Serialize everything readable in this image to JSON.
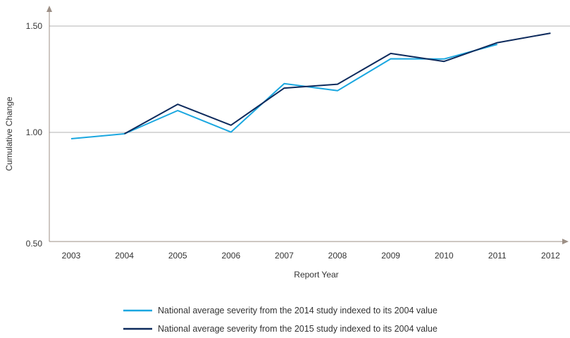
{
  "chart_data": {
    "type": "line",
    "xlabel": "Report Year",
    "ylabel": "Cumulative Change",
    "ylim": [
      0.5,
      1.5
    ],
    "yticks": [
      "0.50",
      "1.00",
      "1.50"
    ],
    "categories": [
      "2003",
      "2004",
      "2005",
      "2006",
      "2007",
      "2008",
      "2009",
      "2010",
      "2011",
      "2012"
    ],
    "grid": "horizontal",
    "legend_position": "bottom",
    "series": [
      {
        "name": "National average severity from the 2014 study indexed to its 2004 value",
        "color": "#1aa7e0",
        "values": [
          0.977,
          1.0,
          1.108,
          1.008,
          1.233,
          1.2,
          1.348,
          1.347,
          1.415,
          null
        ]
      },
      {
        "name": "National average severity from the 2015 study indexed to its 2004 value",
        "color": "#0d2a5c",
        "values": [
          null,
          1.0,
          1.137,
          1.04,
          1.212,
          1.23,
          1.373,
          1.336,
          1.423,
          1.467
        ]
      }
    ]
  }
}
